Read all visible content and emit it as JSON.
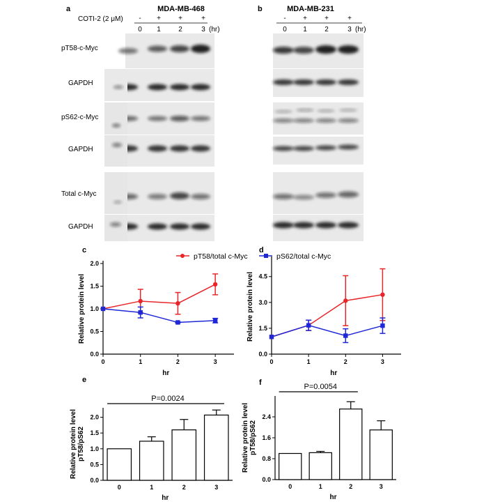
{
  "panel_labels": {
    "a": "a",
    "b": "b",
    "c": "c",
    "d": "d",
    "e": "e",
    "f": "f"
  },
  "blots": {
    "a": {
      "title": "MDA-MB-468",
      "treatment_label": "COTI-2 (2 μM)",
      "treatment_signs": [
        "-",
        "+",
        "+",
        "+"
      ],
      "timepoints": [
        "0",
        "1",
        "2",
        "3"
      ],
      "time_unit": "(hr)",
      "rows": [
        "pT58-c-Myc",
        "GAPDH",
        "pS62-c-Myc",
        "GAPDH",
        "Total c-Myc",
        "GAPDH"
      ]
    },
    "b": {
      "title": "MDA-MB-231",
      "treatment_signs": [
        "-",
        "+",
        "+",
        "+"
      ],
      "timepoints": [
        "0",
        "1",
        "2",
        "3"
      ],
      "time_unit": "(hr)"
    }
  },
  "legend": {
    "series": [
      {
        "name": "pT58/total c-Myc",
        "color": "#e8262a",
        "marker": "circle"
      },
      {
        "name": "pS62/total c-Myc",
        "color": "#1f27d6",
        "marker": "square"
      }
    ],
    "placement": "top-center"
  },
  "chart_data": [
    {
      "panel": "c",
      "type": "line",
      "x": [
        0,
        1,
        2,
        3
      ],
      "xlabel": "hr",
      "ylabel": "Relative protein level",
      "xlim": [
        0,
        3.5
      ],
      "ylim": [
        0,
        2.0
      ],
      "yticks": [
        "0.0",
        "0.5",
        "1.0",
        "1.5",
        "2.0"
      ],
      "xticks": [
        "0",
        "1",
        "2",
        "3"
      ],
      "series": [
        {
          "name": "pT58/total c-Myc",
          "color": "#e8262a",
          "values": [
            1.0,
            1.17,
            1.12,
            1.54
          ],
          "err": [
            0,
            0.26,
            0.24,
            0.23
          ]
        },
        {
          "name": "pS62/total c-Myc",
          "color": "#1f27d6",
          "values": [
            1.0,
            0.92,
            0.7,
            0.74
          ],
          "err": [
            0,
            0.12,
            0.01,
            0.05
          ]
        }
      ]
    },
    {
      "panel": "d",
      "type": "line",
      "x": [
        0,
        1,
        2,
        3
      ],
      "xlabel": "hr",
      "ylabel": "Relative protein level",
      "xlim": [
        0,
        3.5
      ],
      "ylim": [
        0,
        5.5
      ],
      "yticks": [
        "0.0",
        "1.5",
        "3.0",
        "4.5"
      ],
      "xticks": [
        "0",
        "1",
        "2",
        "3"
      ],
      "series": [
        {
          "name": "pT58/total c-Myc",
          "color": "#e8262a",
          "values": [
            1.0,
            1.67,
            3.1,
            3.45
          ],
          "err": [
            0,
            0.3,
            1.45,
            1.5
          ]
        },
        {
          "name": "pS62/total c-Myc",
          "color": "#1f27d6",
          "values": [
            1.0,
            1.67,
            1.07,
            1.65
          ],
          "err": [
            0,
            0.3,
            0.4,
            0.45
          ]
        }
      ]
    },
    {
      "panel": "e",
      "type": "bar",
      "categories": [
        "0",
        "1",
        "2",
        "3"
      ],
      "values": [
        1.0,
        1.24,
        1.6,
        2.07
      ],
      "err": [
        0,
        0.14,
        0.33,
        0.16
      ],
      "xlabel": "hr",
      "ylabel": "Relative protein level\npT58/pS62",
      "ylim": [
        0,
        2.3
      ],
      "yticks": [
        "0.0",
        "0.5",
        "1.0",
        "1.5",
        "2.0"
      ],
      "annotation": {
        "text": "P=0.0024",
        "from": "0",
        "to": "3"
      }
    },
    {
      "panel": "f",
      "type": "bar",
      "categories": [
        "0",
        "1",
        "2",
        "3"
      ],
      "values": [
        1.0,
        1.03,
        2.7,
        1.9
      ],
      "err": [
        0,
        0.05,
        0.28,
        0.35
      ],
      "xlabel": "hr",
      "ylabel": "Relative protein level\npT58/pS62",
      "ylim": [
        0,
        3.2
      ],
      "yticks": [
        "0.0",
        "0.8",
        "1.6",
        "2.4"
      ],
      "annotation": {
        "text": "P=0.0054",
        "from": "0",
        "to": "2"
      }
    }
  ]
}
